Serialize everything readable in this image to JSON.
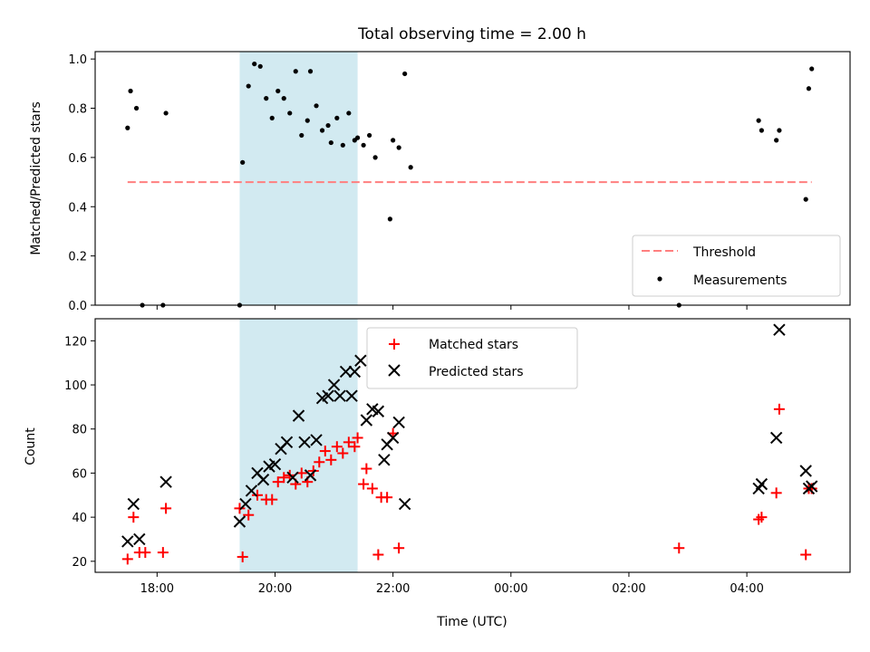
{
  "title": "Total observing time = 2.00 h",
  "colors": {
    "span": "#add8e6",
    "threshold": "#ff7f7f",
    "matched": "#ff0000",
    "predicted": "#000000",
    "measurements": "#000000"
  },
  "chart_data": [
    {
      "type": "scatter",
      "panel": "top",
      "ylabel": "Matched/Predicted stars",
      "ylim": [
        0,
        1.03
      ],
      "yticks": [
        0.0,
        0.2,
        0.4,
        0.6,
        0.8,
        1.0
      ],
      "ytick_labels": [
        "0.0",
        "0.2",
        "0.4",
        "0.6",
        "0.8",
        "1.0"
      ],
      "x_unit": "hours since 00:00 UTC",
      "shaded_span": [
        19.4,
        21.4
      ],
      "legend_position": "bottom-right",
      "threshold": {
        "name": "Threshold",
        "y": 0.5,
        "x": [
          17.5,
          5.1
        ],
        "style": "dashed"
      },
      "series": [
        {
          "name": "Measurements",
          "points": [
            [
              17.5,
              0.72
            ],
            [
              17.55,
              0.87
            ],
            [
              17.65,
              0.8
            ],
            [
              17.75,
              0.0
            ],
            [
              18.1,
              0.0
            ],
            [
              18.15,
              0.78
            ],
            [
              19.4,
              0.0
            ],
            [
              19.45,
              0.58
            ],
            [
              19.55,
              0.89
            ],
            [
              19.65,
              0.98
            ],
            [
              19.75,
              0.97
            ],
            [
              19.85,
              0.84
            ],
            [
              19.95,
              0.76
            ],
            [
              20.05,
              0.87
            ],
            [
              20.15,
              0.84
            ],
            [
              20.25,
              0.78
            ],
            [
              20.35,
              0.95
            ],
            [
              20.45,
              0.69
            ],
            [
              20.55,
              0.75
            ],
            [
              20.6,
              0.95
            ],
            [
              20.7,
              0.81
            ],
            [
              20.8,
              0.71
            ],
            [
              20.9,
              0.73
            ],
            [
              20.95,
              0.66
            ],
            [
              21.05,
              0.76
            ],
            [
              21.15,
              0.65
            ],
            [
              21.25,
              0.78
            ],
            [
              21.35,
              0.67
            ],
            [
              21.4,
              0.68
            ],
            [
              21.5,
              0.65
            ],
            [
              21.6,
              0.69
            ],
            [
              21.7,
              0.6
            ],
            [
              21.95,
              0.35
            ],
            [
              22.0,
              0.67
            ],
            [
              22.1,
              0.64
            ],
            [
              22.2,
              0.94
            ],
            [
              22.3,
              0.56
            ],
            [
              2.85,
              0.0
            ],
            [
              4.2,
              0.75
            ],
            [
              4.25,
              0.71
            ],
            [
              4.5,
              0.67
            ],
            [
              4.55,
              0.71
            ],
            [
              5.0,
              0.43
            ],
            [
              5.05,
              0.88
            ],
            [
              5.1,
              0.96
            ]
          ]
        }
      ]
    },
    {
      "type": "scatter",
      "panel": "bottom",
      "xlabel": "Time (UTC)",
      "ylabel": "Count",
      "ylim": [
        15,
        130
      ],
      "yticks": [
        20,
        40,
        60,
        80,
        100,
        120
      ],
      "ytick_labels": [
        "20",
        "40",
        "60",
        "80",
        "100",
        "120"
      ],
      "xticks": [
        18,
        20,
        22,
        24,
        26,
        28
      ],
      "xtick_labels": [
        "18:00",
        "20:00",
        "22:00",
        "00:00",
        "02:00",
        "04:00"
      ],
      "x_unit": "hours since 00:00 UTC",
      "shaded_span": [
        19.4,
        21.4
      ],
      "legend_position": "top-center",
      "series": [
        {
          "name": "Matched stars",
          "marker": "plus",
          "points": [
            [
              17.5,
              21
            ],
            [
              17.6,
              40
            ],
            [
              17.7,
              24
            ],
            [
              17.8,
              24
            ],
            [
              18.1,
              24
            ],
            [
              18.15,
              44
            ],
            [
              19.4,
              44
            ],
            [
              19.45,
              22
            ],
            [
              19.55,
              41
            ],
            [
              19.7,
              50
            ],
            [
              19.85,
              48
            ],
            [
              19.95,
              48
            ],
            [
              20.05,
              56
            ],
            [
              20.15,
              58
            ],
            [
              20.25,
              59
            ],
            [
              20.35,
              55
            ],
            [
              20.45,
              60
            ],
            [
              20.55,
              56
            ],
            [
              20.65,
              61
            ],
            [
              20.75,
              65
            ],
            [
              20.85,
              70
            ],
            [
              20.95,
              66
            ],
            [
              21.05,
              72
            ],
            [
              21.15,
              69
            ],
            [
              21.25,
              74
            ],
            [
              21.35,
              72
            ],
            [
              21.4,
              76
            ],
            [
              21.5,
              55
            ],
            [
              21.55,
              62
            ],
            [
              21.65,
              53
            ],
            [
              21.75,
              23
            ],
            [
              21.8,
              49
            ],
            [
              21.9,
              49
            ],
            [
              22.0,
              78
            ],
            [
              22.1,
              26
            ],
            [
              2.85,
              26
            ],
            [
              4.2,
              39
            ],
            [
              4.25,
              40
            ],
            [
              4.5,
              51
            ],
            [
              4.55,
              89
            ],
            [
              5.0,
              23
            ],
            [
              5.05,
              53
            ],
            [
              5.1,
              53
            ]
          ]
        },
        {
          "name": "Predicted stars",
          "marker": "x",
          "points": [
            [
              17.5,
              29
            ],
            [
              17.6,
              46
            ],
            [
              17.7,
              30
            ],
            [
              18.15,
              56
            ],
            [
              19.4,
              38
            ],
            [
              19.5,
              46
            ],
            [
              19.6,
              52
            ],
            [
              19.7,
              60
            ],
            [
              19.8,
              57
            ],
            [
              19.9,
              63
            ],
            [
              20.0,
              64
            ],
            [
              20.1,
              71
            ],
            [
              20.2,
              74
            ],
            [
              20.3,
              58
            ],
            [
              20.4,
              86
            ],
            [
              20.5,
              74
            ],
            [
              20.6,
              59
            ],
            [
              20.7,
              75
            ],
            [
              20.8,
              94
            ],
            [
              20.9,
              95
            ],
            [
              21.0,
              100
            ],
            [
              21.1,
              95
            ],
            [
              21.2,
              106
            ],
            [
              21.3,
              95
            ],
            [
              21.35,
              106
            ],
            [
              21.45,
              111
            ],
            [
              21.55,
              84
            ],
            [
              21.65,
              89
            ],
            [
              21.75,
              88
            ],
            [
              21.85,
              66
            ],
            [
              21.9,
              73
            ],
            [
              22.0,
              76
            ],
            [
              22.1,
              83
            ],
            [
              22.2,
              46
            ],
            [
              4.2,
              53
            ],
            [
              4.25,
              55
            ],
            [
              4.5,
              76
            ],
            [
              4.55,
              125
            ],
            [
              5.0,
              61
            ],
            [
              5.05,
              53
            ],
            [
              5.1,
              54
            ]
          ]
        }
      ]
    }
  ]
}
